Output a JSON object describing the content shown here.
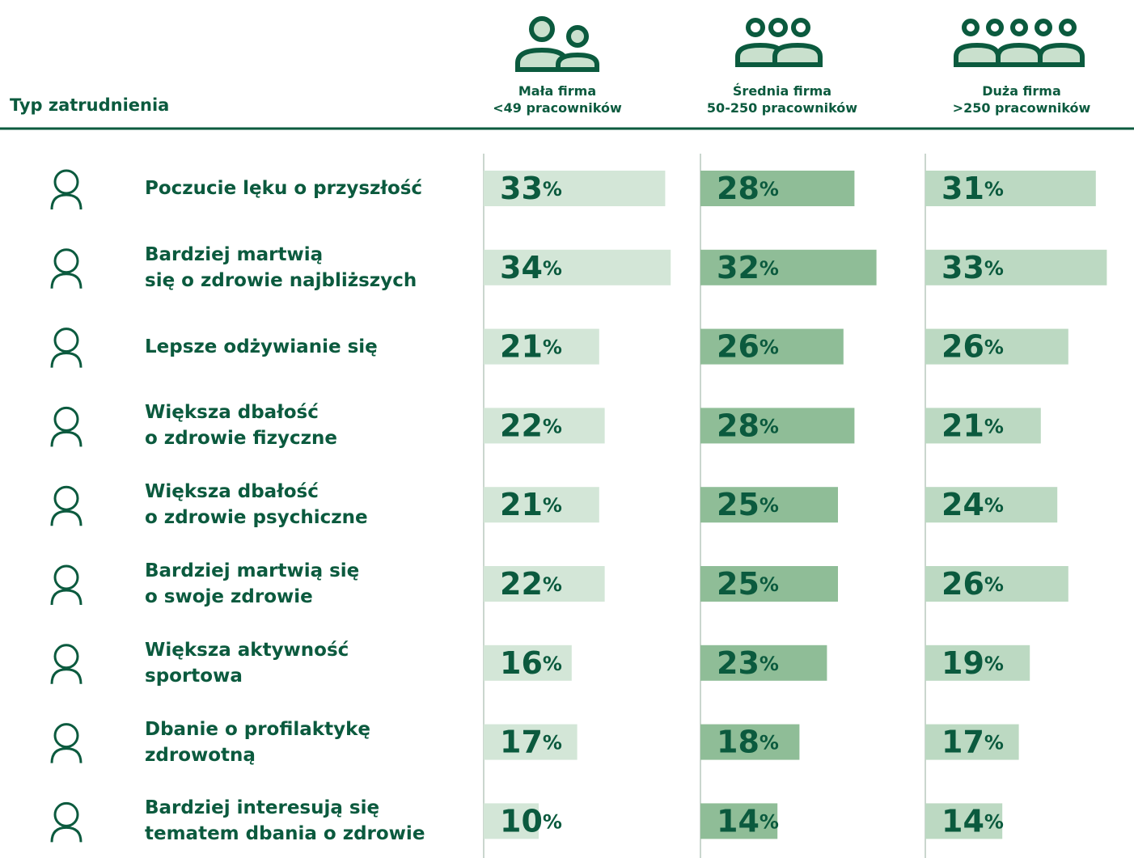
{
  "chart_data": {
    "type": "bar",
    "orientation": "horizontal",
    "row_header": "Typ zatrudnienia",
    "categories": [
      "Poczucie lęku o przyszłość",
      "Bardziej martwią\nsię o zdrowie najbliższych",
      "Lepsze odżywianie się",
      "Większa dbałość\no zdrowie fizyczne",
      "Większa dbałość\no zdrowie psychiczne",
      "Bardziej martwią się\no swoje zdrowie",
      "Większa aktywność\nsportowa",
      "Dbanie o profilaktykę\nzdrowotną",
      "Bardziej interesują się\ntematem dbania o zdrowie"
    ],
    "xlim": [
      0,
      40
    ],
    "series": [
      {
        "name": "Mała firma\n<49 pracowników",
        "color": "#d3e6d7",
        "values": [
          33,
          34,
          21,
          22,
          21,
          22,
          16,
          17,
          10
        ],
        "value_labels": [
          "33%",
          "34%",
          "21%",
          "22%",
          "21%",
          "22%",
          "16%",
          "17%",
          "10%"
        ]
      },
      {
        "name": "Średnia firma\n50-250 pracowników",
        "color": "#8fbd97",
        "values": [
          28,
          32,
          26,
          28,
          25,
          25,
          23,
          18,
          14
        ],
        "value_labels": [
          "28%",
          "32%",
          "26%",
          "28%",
          "25%",
          "25%",
          "23%",
          "18%",
          "14%"
        ]
      },
      {
        "name": "Duża firma\n>250 pracowników",
        "color": "#bcd9c2",
        "values": [
          31,
          33,
          26,
          21,
          24,
          26,
          19,
          17,
          14
        ],
        "value_labels": [
          "31%",
          "33%",
          "26%",
          "21%",
          "24%",
          "26%",
          "19%",
          "17%",
          "14%"
        ]
      }
    ]
  }
}
